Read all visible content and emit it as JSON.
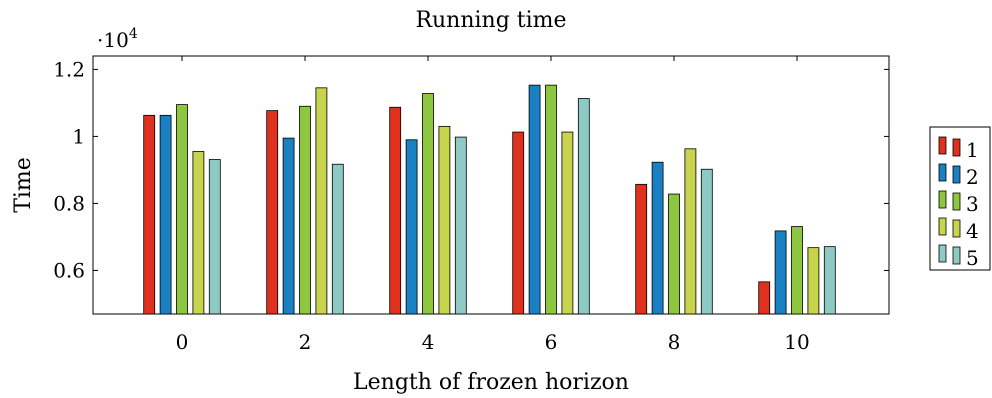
{
  "chart_data": {
    "type": "bar",
    "title": "Running time",
    "xlabel": "Length of frozen horizon",
    "ylabel": "Time",
    "y_multiplier": "·10",
    "y_multiplier_exp": "4",
    "categories": [
      "0",
      "2",
      "4",
      "6",
      "8",
      "10"
    ],
    "ylim": [
      0.47,
      1.24
    ],
    "yticks": [
      0.6,
      0.8,
      1.0,
      1.2
    ],
    "ytick_labels": [
      "0.6",
      "0.8",
      "1",
      "1.2"
    ],
    "series": [
      {
        "name": "1",
        "color": "#e0301e",
        "values": [
          1.063,
          1.077,
          1.087,
          1.013,
          0.857,
          0.566
        ]
      },
      {
        "name": "2",
        "color": "#1a80c4",
        "values": [
          1.063,
          0.995,
          0.99,
          1.153,
          0.923,
          0.718
        ]
      },
      {
        "name": "3",
        "color": "#8dc63f",
        "values": [
          1.095,
          1.09,
          1.128,
          1.153,
          0.828,
          0.731
        ]
      },
      {
        "name": "4",
        "color": "#c8d44e",
        "values": [
          0.955,
          1.145,
          1.03,
          1.013,
          0.963,
          0.668
        ]
      },
      {
        "name": "5",
        "color": "#8ecac4",
        "values": [
          0.931,
          0.917,
          0.998,
          1.113,
          0.902,
          0.671
        ]
      }
    ],
    "grid": false,
    "legend_position": "right"
  }
}
